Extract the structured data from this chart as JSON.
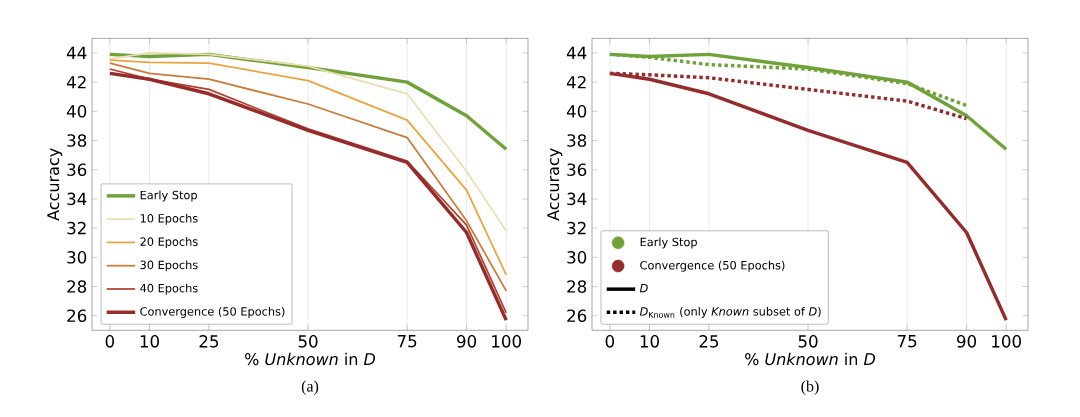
{
  "chart_data": [
    {
      "type": "line",
      "xlabel": "% *Unknown* in *D*",
      "ylabel": "Accuracy",
      "x": [
        0,
        10,
        25,
        50,
        75,
        90,
        100
      ],
      "xlim": [
        -4.5,
        105.5
      ],
      "ylim": [
        25,
        45
      ],
      "xticks": [
        0,
        10,
        25,
        50,
        75,
        90,
        100
      ],
      "yticks": [
        26,
        28,
        30,
        32,
        34,
        36,
        38,
        40,
        42,
        44
      ],
      "grid": "x",
      "legend": "bottom left",
      "annotations": [
        "(a)"
      ],
      "series": [
        {
          "name": "Early Stop",
          "color": "#6fa33a",
          "values": [
            43.9,
            43.75,
            43.9,
            43.0,
            42.0,
            39.7,
            37.4
          ]
        },
        {
          "name": "10 Epochs",
          "color": "#ecdcb0",
          "values": [
            43.6,
            44.0,
            43.9,
            43.1,
            41.2,
            35.9,
            31.8
          ]
        },
        {
          "name": "20 Epochs",
          "color": "#e9a43b",
          "values": [
            43.5,
            43.35,
            43.3,
            42.1,
            39.4,
            34.6,
            28.8
          ]
        },
        {
          "name": "30 Epochs",
          "color": "#cc7a35",
          "values": [
            43.3,
            42.6,
            42.2,
            40.5,
            38.2,
            32.5,
            27.7
          ]
        },
        {
          "name": "40 Epochs",
          "color": "#b5412e",
          "values": [
            42.9,
            42.2,
            41.5,
            38.8,
            36.6,
            32.2,
            26.2
          ]
        },
        {
          "name": "Convergence (50 Epochs)",
          "color": "#952b2b",
          "values": [
            42.6,
            42.2,
            41.2,
            38.7,
            36.5,
            31.7,
            25.7
          ]
        }
      ]
    },
    {
      "type": "line",
      "xlabel": "% *Unknown* in *D*",
      "ylabel": "Accuracy",
      "x": [
        0,
        10,
        25,
        50,
        75,
        90,
        100
      ],
      "xlim": [
        -4.5,
        105.5
      ],
      "ylim": [
        25,
        45
      ],
      "xticks": [
        0,
        10,
        25,
        50,
        75,
        90,
        100
      ],
      "yticks": [
        26,
        28,
        30,
        32,
        34,
        36,
        38,
        40,
        42,
        44
      ],
      "grid": "x",
      "legend": "bottom left",
      "annotations": [
        "(b)",
        "*D*",
        "*D*$_{Known}$ (only *Known* subset of *D*)"
      ],
      "series": [
        {
          "name": "Early Stop",
          "color": "#6fa33a",
          "line_style": "solid",
          "values": [
            43.9,
            43.75,
            43.9,
            43.0,
            42.0,
            39.7,
            37.4
          ]
        },
        {
          "name": "Convergence (50 Epochs)",
          "color": "#952b2b",
          "line_style": "solid",
          "values": [
            42.6,
            42.2,
            41.2,
            38.7,
            36.5,
            31.7,
            25.7
          ]
        },
        {
          "color": "#6fa33a",
          "line_style": "dotted",
          "x": [
            0,
            10,
            25,
            50,
            75,
            90
          ],
          "values": [
            43.9,
            43.7,
            43.2,
            42.9,
            41.9,
            40.4
          ]
        },
        {
          "color": "#952b2b",
          "line_style": "dotted",
          "x": [
            0,
            10,
            25,
            50,
            75,
            90
          ],
          "values": [
            42.6,
            42.5,
            42.3,
            41.5,
            40.7,
            39.5
          ]
        }
      ]
    }
  ]
}
